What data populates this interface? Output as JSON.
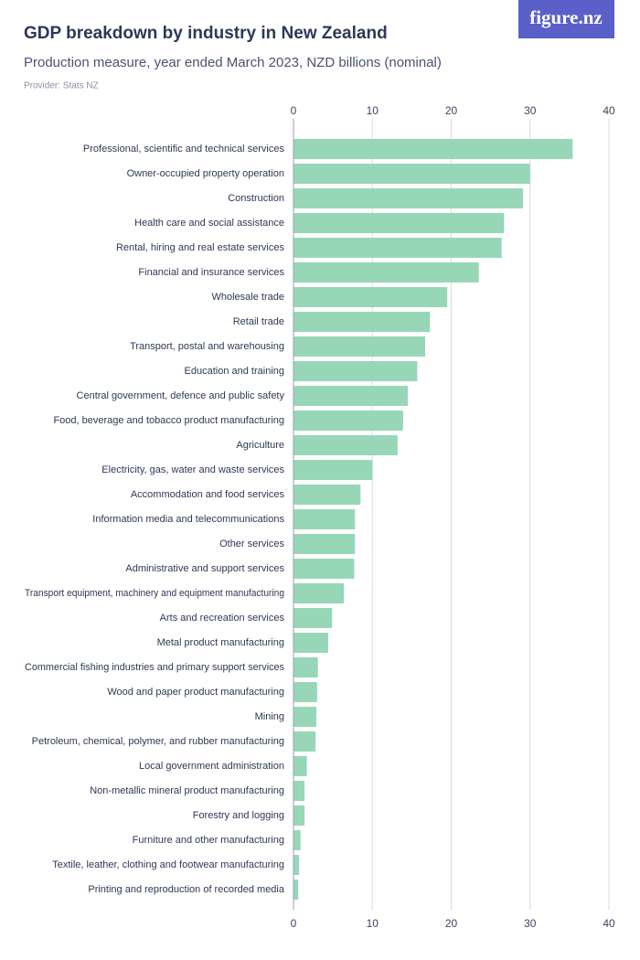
{
  "logo": "figure.nz",
  "chart_data": {
    "type": "bar",
    "orientation": "horizontal",
    "title": "GDP breakdown by industry in New Zealand",
    "subtitle": "Production measure, year ended March 2023, NZD billions (nominal)",
    "provider": "Provider: Stats NZ",
    "categories": [
      "Professional, scientific and technical services",
      "Owner-occupied property operation",
      "Construction",
      "Health care and social assistance",
      "Rental, hiring and real estate services",
      "Financial and insurance services",
      "Wholesale trade",
      "Retail trade",
      "Transport, postal and warehousing",
      "Education and training",
      "Central government, defence and public safety",
      "Food, beverage and tobacco product manufacturing",
      "Agriculture",
      "Electricity, gas, water and waste services",
      "Accommodation and food services",
      "Information media and telecommunications",
      "Other services",
      "Administrative and support services",
      "Transport equipment, machinery and equipment manufacturing",
      "Arts and recreation services",
      "Metal product manufacturing",
      "Commercial fishing industries and primary support services",
      "Wood and paper product manufacturing",
      "Mining",
      "Petroleum, chemical, polymer, and rubber manufacturing",
      "Local government administration",
      "Non-metallic mineral product manufacturing",
      "Forestry and logging",
      "Furniture and other manufacturing",
      "Textile, leather, clothing and footwear manufacturing",
      "Printing and reproduction of recorded media"
    ],
    "values": [
      35.4,
      30.0,
      29.1,
      26.7,
      26.4,
      23.5,
      19.5,
      17.3,
      16.7,
      15.7,
      14.5,
      13.9,
      13.2,
      10.0,
      8.5,
      7.8,
      7.8,
      7.7,
      6.4,
      4.9,
      4.4,
      3.1,
      3.0,
      2.9,
      2.8,
      1.7,
      1.4,
      1.4,
      0.9,
      0.7,
      0.6
    ],
    "color": "#97d7b8",
    "xlim": [
      0,
      40
    ],
    "xticks": [
      0,
      10,
      20,
      30,
      40
    ],
    "grid": true
  }
}
